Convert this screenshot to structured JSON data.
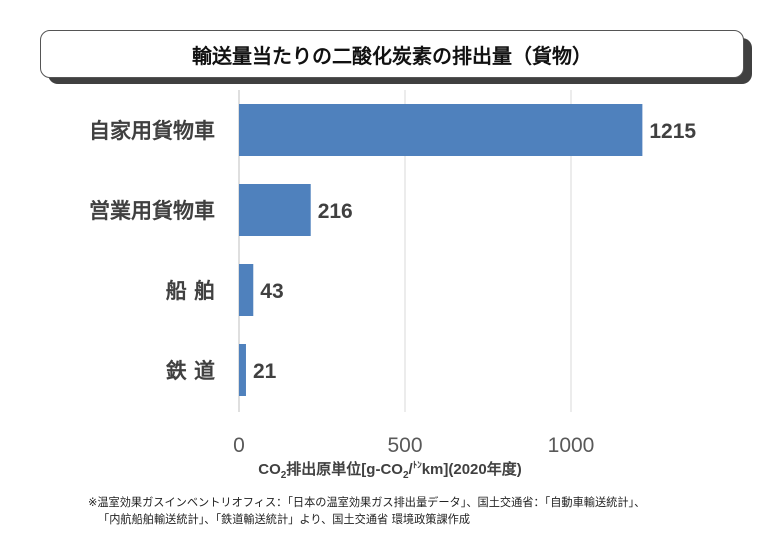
{
  "title": "輸送量当たりの二酸化炭素の排出量（貨物）",
  "chart_data": {
    "type": "bar",
    "orientation": "horizontal",
    "categories": [
      "自家用貨物車",
      "営業用貨物車",
      "船 舶",
      "鉄 道"
    ],
    "values": [
      1215,
      216,
      43,
      21
    ],
    "value_labels": [
      "1215",
      "216",
      "43",
      "21"
    ],
    "xlim": [
      0,
      1200
    ],
    "xticks": [
      0,
      500,
      1000
    ],
    "xtick_labels": [
      "0",
      "500",
      "1000"
    ],
    "grid": "vertical",
    "legend": "none",
    "bar_color": "#4f81bd",
    "xlabel": {
      "pre": "CO",
      "sub1": "2",
      "mid": "排出原単位[g-CO",
      "sub2": "2",
      "mid2": "/",
      "sup": "ﾄﾝ",
      "post": "km](2020年度)"
    }
  },
  "note": {
    "line1": "※温室効果ガスインベントリオフィス：「日本の温室効果ガス排出量データ」、国土交通省：「自動車輸送統計」、",
    "line2": "「内航船舶輸送統計」、「鉄道輸送統計」より、国土交通省 環境政策課作成"
  }
}
